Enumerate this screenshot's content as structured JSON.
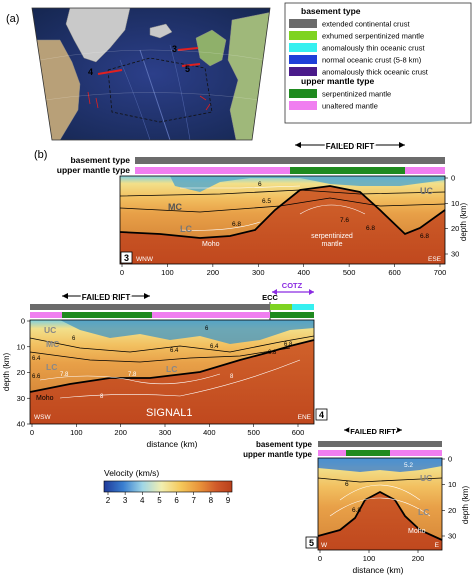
{
  "panels": {
    "a_label": "(a)",
    "b_label": "(b)"
  },
  "legend": {
    "basement_title": "basement type",
    "items_basement": [
      {
        "label": "extended continental crust",
        "color": "#6b6b6b"
      },
      {
        "label": "exhumed serpentinized mantle",
        "color": "#7ed321"
      },
      {
        "label": "anomalously thin oceanic crust",
        "color": "#35f0f0"
      },
      {
        "label": "normal oceanic crust (5-8 km)",
        "color": "#1f3fd8"
      },
      {
        "label": "anomalously thick oceanic crust",
        "color": "#4a1a8a"
      }
    ],
    "mantle_title": "upper mantle type",
    "items_mantle": [
      {
        "label": "serpentinized mantle",
        "color": "#1f8a1f"
      },
      {
        "label": "unaltered mantle",
        "color": "#f07ef0"
      }
    ]
  },
  "map": {
    "profile_labels": [
      "3",
      "4",
      "5"
    ]
  },
  "profile3": {
    "failed_rift": "FAILED RIFT",
    "row_basement": "basement type",
    "row_mantle": "upper mantle type",
    "number": "3",
    "left_dir": "WNW",
    "right_dir": "ESE",
    "layers": [
      "MC",
      "LC",
      "UC"
    ],
    "note_serp": "serpentinized",
    "note_mantle": "mantle",
    "moho": "Moho",
    "contours": [
      "6",
      "6.5",
      "7.6",
      "6.8",
      "6.8",
      "6.8"
    ],
    "x_ticks": [
      "0",
      "100",
      "200",
      "300",
      "400",
      "500",
      "600",
      "700"
    ],
    "y_ticks": [
      "0",
      "10",
      "20",
      "30"
    ],
    "ylabel": "depth (km)"
  },
  "profile4": {
    "failed_rift": "FAILED RIFT",
    "ecc": "ECC",
    "cotz": "COTZ",
    "number": "4",
    "left_dir": "WSW",
    "right_dir": "ENE",
    "name": "SIGNAL1",
    "layers": [
      "UC",
      "MC",
      "LC",
      "LC"
    ],
    "moho": "Moho",
    "contours": [
      "6",
      "6.4",
      "6.6",
      "7.8",
      "8",
      "6.4",
      "6.4",
      "6",
      "6.8",
      "6.8",
      "8",
      "7.8"
    ],
    "x_ticks": [
      "0",
      "100",
      "200",
      "300",
      "400",
      "500",
      "600"
    ],
    "y_ticks": [
      "0",
      "10",
      "20",
      "30",
      "40"
    ],
    "ylabel": "depth (km)",
    "xlabel": "distance (km)"
  },
  "profile5": {
    "failed_rift": "FAILED RIFT",
    "row_basement": "basement type",
    "row_mantle": "upper mantle type",
    "number": "5",
    "left_dir": "W",
    "right_dir": "E",
    "layers": [
      "UC",
      "LC"
    ],
    "moho": "Moho",
    "contours": [
      "5.2",
      "6",
      "6.8"
    ],
    "x_ticks": [
      "0",
      "100",
      "200"
    ],
    "y_ticks": [
      "0",
      "10",
      "20",
      "30"
    ],
    "ylabel": "depth (km)",
    "xlabel": "distance (km)"
  },
  "colorbar": {
    "title": "Velocity (km/s)",
    "ticks": [
      "2",
      "3",
      "4",
      "5",
      "6",
      "7",
      "8",
      "9"
    ]
  }
}
